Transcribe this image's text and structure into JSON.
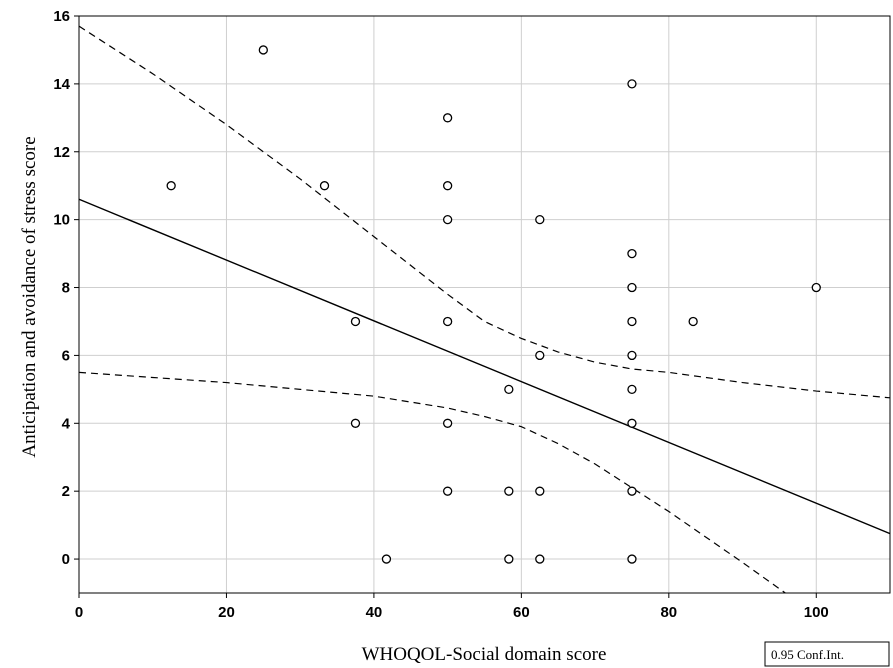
{
  "chart_data": {
    "type": "scatter",
    "title": "",
    "xlabel": "WHOQOL-Social domain score",
    "ylabel": "Anticipation and avoidance of stress score",
    "xlim": [
      0,
      110
    ],
    "ylim": [
      -1,
      16
    ],
    "x_ticks": [
      0,
      20,
      40,
      60,
      80,
      100
    ],
    "y_ticks": [
      0,
      2,
      4,
      6,
      8,
      10,
      12,
      14,
      16
    ],
    "grid": true,
    "points": [
      {
        "x": 12.5,
        "y": 11
      },
      {
        "x": 25,
        "y": 15
      },
      {
        "x": 33.3,
        "y": 11
      },
      {
        "x": 37.5,
        "y": 7
      },
      {
        "x": 37.5,
        "y": 4
      },
      {
        "x": 41.7,
        "y": 0
      },
      {
        "x": 50,
        "y": 13
      },
      {
        "x": 50,
        "y": 11
      },
      {
        "x": 50,
        "y": 10
      },
      {
        "x": 50,
        "y": 7
      },
      {
        "x": 50,
        "y": 4
      },
      {
        "x": 50,
        "y": 2
      },
      {
        "x": 58.3,
        "y": 5
      },
      {
        "x": 58.3,
        "y": 2
      },
      {
        "x": 58.3,
        "y": 0
      },
      {
        "x": 62.5,
        "y": 10
      },
      {
        "x": 62.5,
        "y": 6
      },
      {
        "x": 62.5,
        "y": 2
      },
      {
        "x": 62.5,
        "y": 0
      },
      {
        "x": 75,
        "y": 14
      },
      {
        "x": 75,
        "y": 9
      },
      {
        "x": 75,
        "y": 8
      },
      {
        "x": 75,
        "y": 7
      },
      {
        "x": 75,
        "y": 6
      },
      {
        "x": 75,
        "y": 5
      },
      {
        "x": 75,
        "y": 4
      },
      {
        "x": 75,
        "y": 2
      },
      {
        "x": 75,
        "y": 0
      },
      {
        "x": 83.3,
        "y": 7
      },
      {
        "x": 100,
        "y": 8
      }
    ],
    "regression_line": {
      "x": [
        0,
        110
      ],
      "y": [
        10.6,
        0.75
      ]
    },
    "confidence_upper": {
      "x": [
        0,
        10,
        20,
        30,
        40,
        50,
        55,
        60,
        65,
        70,
        75,
        80,
        90,
        100,
        110
      ],
      "y": [
        15.7,
        14.3,
        12.8,
        11.2,
        9.5,
        7.8,
        7.0,
        6.5,
        6.1,
        5.8,
        5.6,
        5.5,
        5.2,
        4.95,
        4.75
      ]
    },
    "confidence_lower": {
      "x": [
        0,
        10,
        20,
        30,
        40,
        50,
        55,
        60,
        65,
        70,
        75,
        80,
        90,
        95.8
      ],
      "y": [
        5.5,
        5.35,
        5.2,
        5.0,
        4.8,
        4.45,
        4.2,
        3.9,
        3.4,
        2.8,
        2.1,
        1.4,
        -0.1,
        -1.0
      ]
    },
    "legend": {
      "label": "0.95 Conf.Int.",
      "position": "bottom-right"
    }
  }
}
